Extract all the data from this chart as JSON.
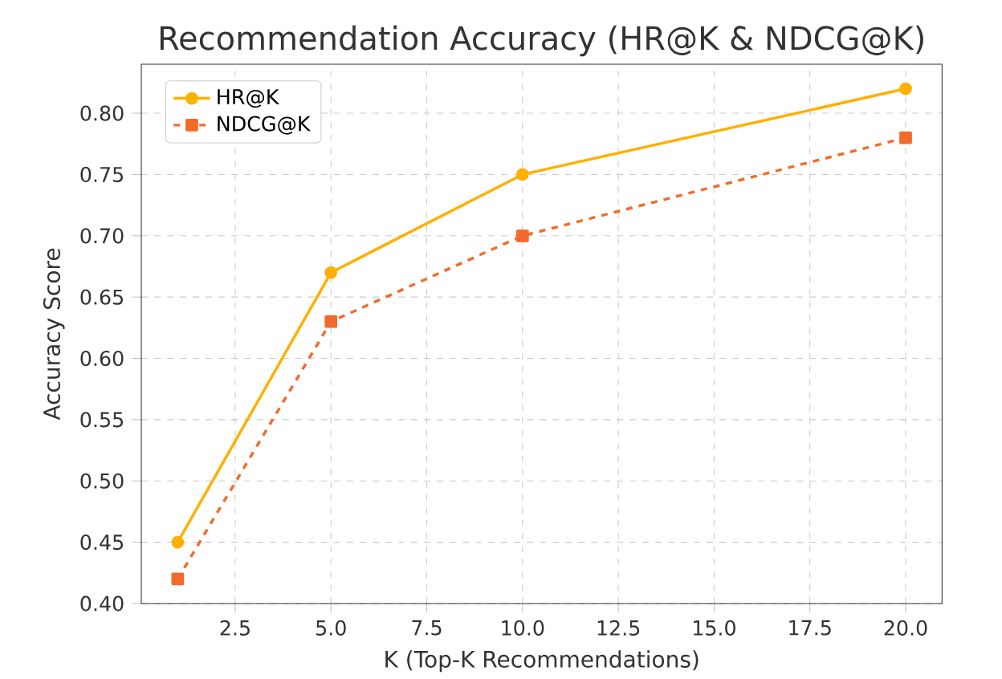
{
  "chart_data": {
    "type": "line",
    "title": "Recommendation Accuracy (HR@K & NDCG@K)",
    "xlabel": "K (Top-K Recommendations)",
    "ylabel": "Accuracy Score",
    "x": [
      1,
      5,
      10,
      20
    ],
    "series": [
      {
        "name": "HR@K",
        "color": "#ffb000",
        "values": [
          0.45,
          0.67,
          0.75,
          0.82
        ],
        "marker": "circle",
        "line_style": "solid"
      },
      {
        "name": "NDCG@K",
        "color": "#f26b2a",
        "values": [
          0.42,
          0.63,
          0.7,
          0.78
        ],
        "marker": "square",
        "line_style": "dashed"
      }
    ],
    "xlim": [
      0.05,
      20.95
    ],
    "ylim": [
      0.4,
      0.84
    ],
    "xticks": [
      {
        "value": 2.5,
        "label": "2.5"
      },
      {
        "value": 5,
        "label": "5.0"
      },
      {
        "value": 7.5,
        "label": "7.5"
      },
      {
        "value": 10,
        "label": "10.0"
      },
      {
        "value": 12.5,
        "label": "12.5"
      },
      {
        "value": 15,
        "label": "15.0"
      },
      {
        "value": 17.5,
        "label": "17.5"
      },
      {
        "value": 20,
        "label": "20.0"
      }
    ],
    "yticks": [
      {
        "value": 0.4,
        "label": "0.40"
      },
      {
        "value": 0.45,
        "label": "0.45"
      },
      {
        "value": 0.5,
        "label": "0.50"
      },
      {
        "value": 0.55,
        "label": "0.55"
      },
      {
        "value": 0.6,
        "label": "0.60"
      },
      {
        "value": 0.65,
        "label": "0.65"
      },
      {
        "value": 0.7,
        "label": "0.70"
      },
      {
        "value": 0.75,
        "label": "0.75"
      },
      {
        "value": 0.8,
        "label": "0.80"
      }
    ],
    "grid": true,
    "legend": "top left"
  }
}
